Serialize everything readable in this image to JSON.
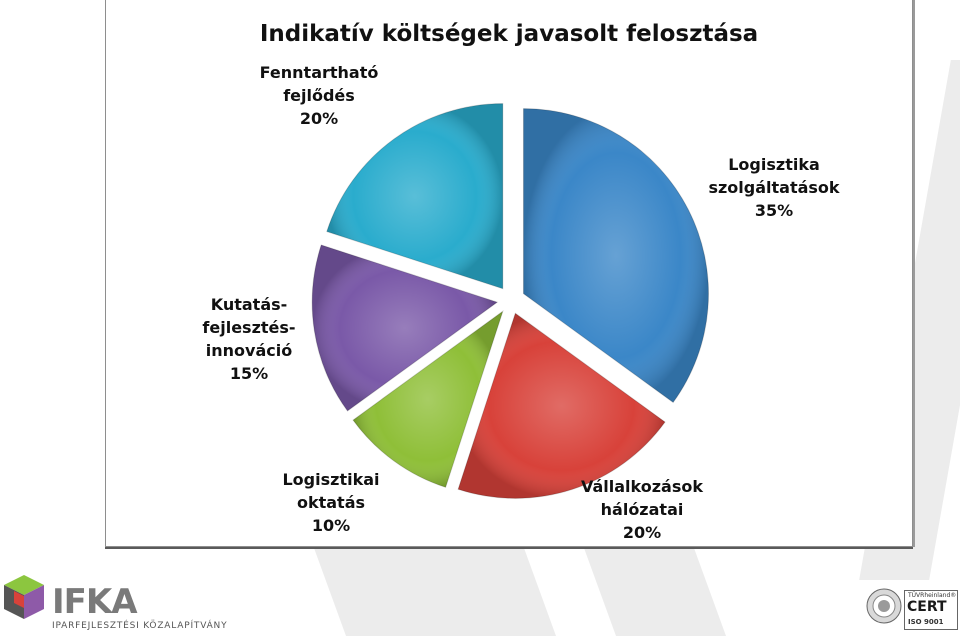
{
  "chart_data": {
    "type": "pie",
    "title": "Indikatív költségek javasolt felosztása",
    "exploded": true,
    "slices": [
      {
        "label": [
          "Logisztika",
          "szolgáltatások"
        ],
        "percent_label": "35%",
        "value": 35,
        "color": "#3b87c8"
      },
      {
        "label": [
          "Vállalkozások",
          "hálózatai"
        ],
        "percent_label": "20%",
        "value": 20,
        "color": "#d8423a"
      },
      {
        "label": [
          "Logisztikai",
          "oktatás"
        ],
        "percent_label": "10%",
        "value": 10,
        "color": "#8fbf38"
      },
      {
        "label": [
          "Kutatás-",
          "fejlesztés-",
          "innováció"
        ],
        "percent_label": "15%",
        "value": 15,
        "color": "#7a59a8"
      },
      {
        "label": [
          "Fenntartható",
          "fejlődés"
        ],
        "percent_label": "20%",
        "value": 20,
        "color": "#2aaccd"
      }
    ]
  },
  "footer": {
    "logo_text": "IFKA",
    "logo_subtitle": "IPARFEJLESZTÉSI KÖZALAPÍTVÁNY",
    "cert": {
      "tuv": "TÜVRheinland®",
      "word": "CERT",
      "iso": "ISO 9001"
    }
  }
}
